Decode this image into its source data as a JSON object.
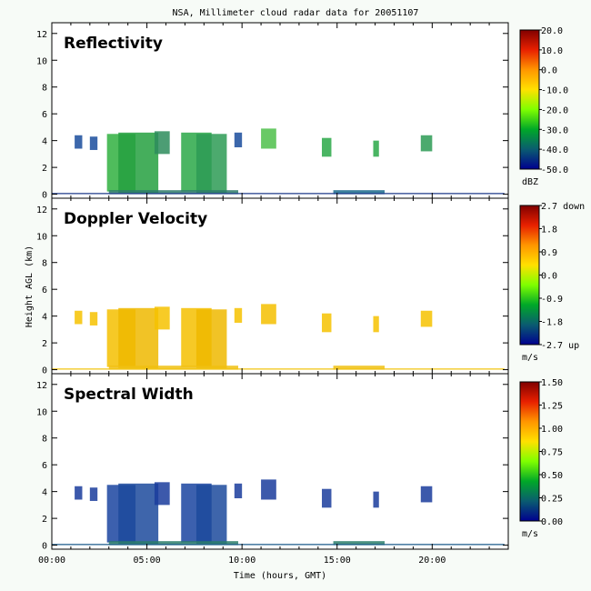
{
  "title": "NSA, Millimeter cloud radar data for 20051107",
  "ylabel": "Height AGL (km)",
  "xlabel": "Time (hours, GMT)",
  "x_ticks": [
    "00:00",
    "05:00",
    "10:00",
    "15:00",
    "20:00"
  ],
  "y_ticks": [
    "0",
    "2",
    "4",
    "6",
    "8",
    "10",
    "12"
  ],
  "chart_data": [
    {
      "type": "heatmap",
      "title": "Reflectivity",
      "xlabel": "Time (hours, GMT)",
      "ylabel": "Height AGL (km)",
      "xlim": [
        0,
        24
      ],
      "ylim": [
        -0.3,
        12.8
      ],
      "colorbar": {
        "labels": [
          "20.0",
          "10.0",
          "0.0",
          "-10.0",
          "-20.0",
          "-30.0",
          "-40.0",
          "-50.0"
        ],
        "unit": "dBZ",
        "range": [
          -50,
          20
        ],
        "colors": [
          "#800000",
          "#e82000",
          "#ff9600",
          "#ffe100",
          "#7fff00",
          "#00a828",
          "#0a5c70",
          "#00008f"
        ]
      },
      "echoes": [
        {
          "t": [
            1.2,
            1.6
          ],
          "h": [
            3.4,
            4.4
          ],
          "color": "#1a4c9c"
        },
        {
          "t": [
            2.0,
            2.4
          ],
          "h": [
            3.3,
            4.3
          ],
          "color": "#1a4c9c"
        },
        {
          "t": [
            2.9,
            4.4
          ],
          "h": [
            0.2,
            4.5
          ],
          "color": "#30b040"
        },
        {
          "t": [
            3.5,
            5.6
          ],
          "h": [
            0.1,
            4.6
          ],
          "color": "#25a040"
        },
        {
          "t": [
            5.4,
            6.2
          ],
          "h": [
            3.0,
            4.7
          ],
          "color": "#2d8c5c"
        },
        {
          "t": [
            6.8,
            8.4
          ],
          "h": [
            0.2,
            4.6
          ],
          "color": "#2aa848"
        },
        {
          "t": [
            7.6,
            9.2
          ],
          "h": [
            0.1,
            4.5
          ],
          "color": "#2d9b55"
        },
        {
          "t": [
            9.6,
            10.0
          ],
          "h": [
            3.5,
            4.6
          ],
          "color": "#1a4c9c"
        },
        {
          "t": [
            11.0,
            11.8
          ],
          "h": [
            3.4,
            4.9
          ],
          "color": "#4ec04a"
        },
        {
          "t": [
            14.2,
            14.7
          ],
          "h": [
            2.8,
            4.2
          ],
          "color": "#2aa848"
        },
        {
          "t": [
            16.9,
            17.2
          ],
          "h": [
            2.8,
            4.0
          ],
          "color": "#2aa848"
        },
        {
          "t": [
            19.4,
            20.0
          ],
          "h": [
            3.2,
            4.4
          ],
          "color": "#2d9b55"
        },
        {
          "t": [
            3.0,
            9.8
          ],
          "h": [
            0.0,
            0.3
          ],
          "color": "#2d7a6a"
        },
        {
          "t": [
            14.8,
            17.5
          ],
          "h": [
            0.0,
            0.3
          ],
          "color": "#1a6a8c"
        },
        {
          "t": [
            0.0,
            23.8
          ],
          "h": [
            0.0,
            0.1
          ],
          "color": "#203c8c"
        }
      ]
    },
    {
      "type": "heatmap",
      "title": "Doppler Velocity",
      "xlabel": "Time (hours, GMT)",
      "ylabel": "Height AGL (km)",
      "xlim": [
        0,
        24
      ],
      "ylim": [
        -0.3,
        12.8
      ],
      "colorbar": {
        "labels": [
          "2.7 down",
          "1.8",
          "0.9",
          "0.0",
          "-0.9",
          "-1.8",
          "-2.7 up"
        ],
        "unit": "m/s",
        "range": [
          -2.7,
          2.7
        ],
        "colors": [
          "#800000",
          "#e82000",
          "#ff9600",
          "#ffe100",
          "#7fff00",
          "#00a828",
          "#0a5c70",
          "#00008f"
        ]
      },
      "echoes": [
        {
          "t": [
            1.2,
            1.6
          ],
          "h": [
            3.4,
            4.4
          ],
          "color": "#f6c200"
        },
        {
          "t": [
            2.0,
            2.4
          ],
          "h": [
            3.3,
            4.3
          ],
          "color": "#f6c200"
        },
        {
          "t": [
            2.9,
            4.4
          ],
          "h": [
            0.2,
            4.5
          ],
          "color": "#f4c000"
        },
        {
          "t": [
            3.5,
            5.6
          ],
          "h": [
            0.1,
            4.6
          ],
          "color": "#eeb800"
        },
        {
          "t": [
            5.4,
            6.2
          ],
          "h": [
            3.0,
            4.7
          ],
          "color": "#f6c200"
        },
        {
          "t": [
            6.8,
            8.4
          ],
          "h": [
            0.2,
            4.6
          ],
          "color": "#f4c000"
        },
        {
          "t": [
            7.6,
            9.2
          ],
          "h": [
            0.1,
            4.5
          ],
          "color": "#eeb800"
        },
        {
          "t": [
            9.6,
            10.0
          ],
          "h": [
            3.5,
            4.6
          ],
          "color": "#f6c200"
        },
        {
          "t": [
            11.0,
            11.8
          ],
          "h": [
            3.4,
            4.9
          ],
          "color": "#f4c000"
        },
        {
          "t": [
            14.2,
            14.7
          ],
          "h": [
            2.8,
            4.2
          ],
          "color": "#f6c200"
        },
        {
          "t": [
            16.9,
            17.2
          ],
          "h": [
            2.8,
            4.0
          ],
          "color": "#f6c200"
        },
        {
          "t": [
            19.4,
            20.0
          ],
          "h": [
            3.2,
            4.4
          ],
          "color": "#f6c200"
        },
        {
          "t": [
            3.0,
            9.8
          ],
          "h": [
            0.0,
            0.3
          ],
          "color": "#f0c010"
        },
        {
          "t": [
            14.8,
            17.5
          ],
          "h": [
            0.0,
            0.3
          ],
          "color": "#f0c010"
        },
        {
          "t": [
            0.0,
            23.8
          ],
          "h": [
            0.0,
            0.1
          ],
          "color": "#f2c410"
        }
      ]
    },
    {
      "type": "heatmap",
      "title": "Spectral Width",
      "xlabel": "Time (hours, GMT)",
      "ylabel": "Height AGL (km)",
      "xlim": [
        0,
        24
      ],
      "ylim": [
        -0.3,
        12.8
      ],
      "colorbar": {
        "labels": [
          "1.50",
          "1.25",
          "1.00",
          "0.75",
          "0.50",
          "0.25",
          "0.00"
        ],
        "unit": "m/s",
        "range": [
          0,
          1.5
        ],
        "colors": [
          "#800000",
          "#e82000",
          "#ff9600",
          "#ffe100",
          "#7fff00",
          "#00a828",
          "#0a5c70",
          "#00008f"
        ]
      },
      "echoes": [
        {
          "t": [
            1.2,
            1.6
          ],
          "h": [
            3.4,
            4.4
          ],
          "color": "#1a3c9c"
        },
        {
          "t": [
            2.0,
            2.4
          ],
          "h": [
            3.3,
            4.3
          ],
          "color": "#1a3c9c"
        },
        {
          "t": [
            2.9,
            4.4
          ],
          "h": [
            0.2,
            4.5
          ],
          "color": "#1a44a0"
        },
        {
          "t": [
            3.5,
            5.6
          ],
          "h": [
            0.1,
            4.6
          ],
          "color": "#1c4a9c"
        },
        {
          "t": [
            5.4,
            6.2
          ],
          "h": [
            3.0,
            4.7
          ],
          "color": "#1a3c9c"
        },
        {
          "t": [
            6.8,
            8.4
          ],
          "h": [
            0.2,
            4.6
          ],
          "color": "#1a44a0"
        },
        {
          "t": [
            7.6,
            9.2
          ],
          "h": [
            0.1,
            4.5
          ],
          "color": "#1c4a9c"
        },
        {
          "t": [
            9.6,
            10.0
          ],
          "h": [
            3.5,
            4.6
          ],
          "color": "#1a3c9c"
        },
        {
          "t": [
            11.0,
            11.8
          ],
          "h": [
            3.4,
            4.9
          ],
          "color": "#1a3c9c"
        },
        {
          "t": [
            14.2,
            14.7
          ],
          "h": [
            2.8,
            4.2
          ],
          "color": "#1a3c9c"
        },
        {
          "t": [
            16.9,
            17.2
          ],
          "h": [
            2.8,
            4.0
          ],
          "color": "#1a3c9c"
        },
        {
          "t": [
            19.4,
            20.0
          ],
          "h": [
            3.2,
            4.4
          ],
          "color": "#1a3c9c"
        },
        {
          "t": [
            3.0,
            9.8
          ],
          "h": [
            0.0,
            0.3
          ],
          "color": "#2a7c6a"
        },
        {
          "t": [
            14.8,
            17.5
          ],
          "h": [
            0.0,
            0.3
          ],
          "color": "#2a7c6a"
        },
        {
          "t": [
            0.0,
            23.8
          ],
          "h": [
            0.0,
            0.1
          ],
          "color": "#1c5c8c"
        }
      ]
    }
  ]
}
